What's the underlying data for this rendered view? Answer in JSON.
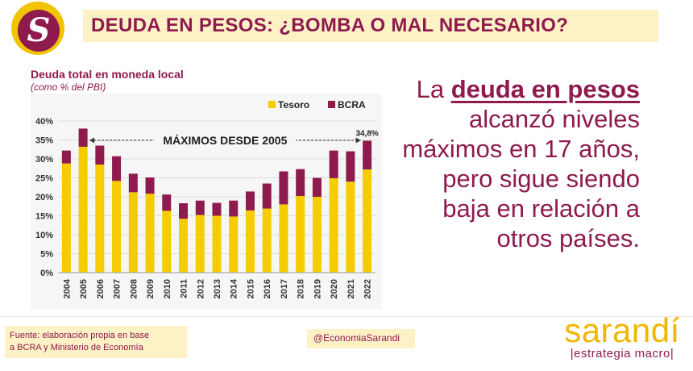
{
  "banner": {
    "title": "DEUDA EN PESOS: ¿BOMBA O MAL NECESARIO?"
  },
  "logo": {
    "letter": "S",
    "icon": "sarandi-s-logo-icon"
  },
  "colors": {
    "brand_purple": "#8e1a4e",
    "brand_yellow": "#f2c300",
    "banner_bg": "#fdf1c6"
  },
  "chart": {
    "title": "Deuda total en moneda local",
    "subtitle": "(como % del PBI)"
  },
  "chart_data": {
    "type": "bar",
    "stacked": true,
    "categories": [
      "2004",
      "2005",
      "2006",
      "2007",
      "2008",
      "2009",
      "2010",
      "2011",
      "2012",
      "2013",
      "2014",
      "2015",
      "2016",
      "2017",
      "2018",
      "2019",
      "2020",
      "2021",
      "2022"
    ],
    "series": [
      {
        "name": "Tesoro",
        "color": "#f5cc00",
        "values": [
          28.8,
          33.2,
          28.5,
          24.2,
          21.2,
          20.8,
          16.3,
          14.2,
          15.2,
          15.0,
          14.8,
          16.4,
          16.9,
          18.0,
          20.2,
          20.0,
          24.9,
          24.0,
          27.2
        ]
      },
      {
        "name": "BCRA",
        "color": "#8e1a4e",
        "values": [
          3.4,
          4.8,
          5.0,
          6.5,
          4.9,
          4.3,
          4.3,
          4.1,
          3.8,
          3.4,
          4.2,
          5.0,
          6.6,
          8.7,
          7.1,
          5.0,
          7.3,
          8.0,
          7.6
        ]
      }
    ],
    "ylim": [
      0,
      40
    ],
    "yticks": [
      "0%",
      "5%",
      "10%",
      "15%",
      "20%",
      "25%",
      "30%",
      "35%",
      "40%"
    ],
    "grid": true,
    "legend_position": "top-right",
    "annotation": "MÁXIMOS DESDE 2005",
    "last_label": "34,8%"
  },
  "message": {
    "part1": "La ",
    "highlight": "deuda en pesos",
    "part2": " alcanzó niveles máximos en 17 años, pero sigue siendo baja en relación a otros países."
  },
  "footer": {
    "source": "Fuente: elaboración propia en base\na BCRA y Ministerio de Economía",
    "handle": "@EconomiaSarandi",
    "brand_name": "sarandí",
    "brand_tagline": "|estrategia macro|"
  }
}
